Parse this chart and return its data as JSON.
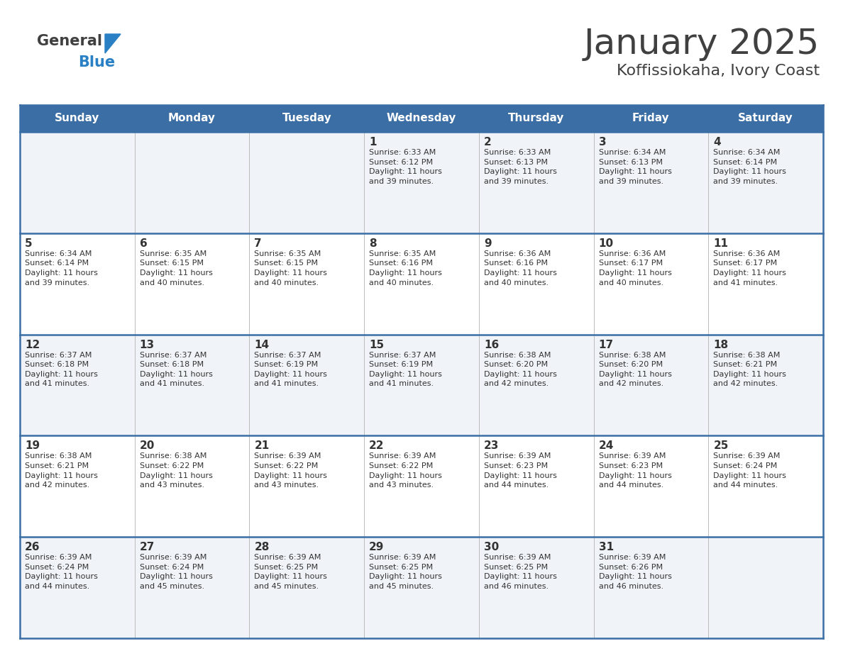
{
  "title": "January 2025",
  "subtitle": "Koffissiokaha, Ivory Coast",
  "header_bg": "#3A6EA5",
  "header_text_color": "#FFFFFF",
  "cell_bg_light": "#F0F4F8",
  "cell_bg_white": "#FFFFFF",
  "text_color": "#333333",
  "days_of_week": [
    "Sunday",
    "Monday",
    "Tuesday",
    "Wednesday",
    "Thursday",
    "Friday",
    "Saturday"
  ],
  "weeks": [
    [
      {
        "day": "",
        "info": ""
      },
      {
        "day": "",
        "info": ""
      },
      {
        "day": "",
        "info": ""
      },
      {
        "day": "1",
        "info": "Sunrise: 6:33 AM\nSunset: 6:12 PM\nDaylight: 11 hours\nand 39 minutes."
      },
      {
        "day": "2",
        "info": "Sunrise: 6:33 AM\nSunset: 6:13 PM\nDaylight: 11 hours\nand 39 minutes."
      },
      {
        "day": "3",
        "info": "Sunrise: 6:34 AM\nSunset: 6:13 PM\nDaylight: 11 hours\nand 39 minutes."
      },
      {
        "day": "4",
        "info": "Sunrise: 6:34 AM\nSunset: 6:14 PM\nDaylight: 11 hours\nand 39 minutes."
      }
    ],
    [
      {
        "day": "5",
        "info": "Sunrise: 6:34 AM\nSunset: 6:14 PM\nDaylight: 11 hours\nand 39 minutes."
      },
      {
        "day": "6",
        "info": "Sunrise: 6:35 AM\nSunset: 6:15 PM\nDaylight: 11 hours\nand 40 minutes."
      },
      {
        "day": "7",
        "info": "Sunrise: 6:35 AM\nSunset: 6:15 PM\nDaylight: 11 hours\nand 40 minutes."
      },
      {
        "day": "8",
        "info": "Sunrise: 6:35 AM\nSunset: 6:16 PM\nDaylight: 11 hours\nand 40 minutes."
      },
      {
        "day": "9",
        "info": "Sunrise: 6:36 AM\nSunset: 6:16 PM\nDaylight: 11 hours\nand 40 minutes."
      },
      {
        "day": "10",
        "info": "Sunrise: 6:36 AM\nSunset: 6:17 PM\nDaylight: 11 hours\nand 40 minutes."
      },
      {
        "day": "11",
        "info": "Sunrise: 6:36 AM\nSunset: 6:17 PM\nDaylight: 11 hours\nand 41 minutes."
      }
    ],
    [
      {
        "day": "12",
        "info": "Sunrise: 6:37 AM\nSunset: 6:18 PM\nDaylight: 11 hours\nand 41 minutes."
      },
      {
        "day": "13",
        "info": "Sunrise: 6:37 AM\nSunset: 6:18 PM\nDaylight: 11 hours\nand 41 minutes."
      },
      {
        "day": "14",
        "info": "Sunrise: 6:37 AM\nSunset: 6:19 PM\nDaylight: 11 hours\nand 41 minutes."
      },
      {
        "day": "15",
        "info": "Sunrise: 6:37 AM\nSunset: 6:19 PM\nDaylight: 11 hours\nand 41 minutes."
      },
      {
        "day": "16",
        "info": "Sunrise: 6:38 AM\nSunset: 6:20 PM\nDaylight: 11 hours\nand 42 minutes."
      },
      {
        "day": "17",
        "info": "Sunrise: 6:38 AM\nSunset: 6:20 PM\nDaylight: 11 hours\nand 42 minutes."
      },
      {
        "day": "18",
        "info": "Sunrise: 6:38 AM\nSunset: 6:21 PM\nDaylight: 11 hours\nand 42 minutes."
      }
    ],
    [
      {
        "day": "19",
        "info": "Sunrise: 6:38 AM\nSunset: 6:21 PM\nDaylight: 11 hours\nand 42 minutes."
      },
      {
        "day": "20",
        "info": "Sunrise: 6:38 AM\nSunset: 6:22 PM\nDaylight: 11 hours\nand 43 minutes."
      },
      {
        "day": "21",
        "info": "Sunrise: 6:39 AM\nSunset: 6:22 PM\nDaylight: 11 hours\nand 43 minutes."
      },
      {
        "day": "22",
        "info": "Sunrise: 6:39 AM\nSunset: 6:22 PM\nDaylight: 11 hours\nand 43 minutes."
      },
      {
        "day": "23",
        "info": "Sunrise: 6:39 AM\nSunset: 6:23 PM\nDaylight: 11 hours\nand 44 minutes."
      },
      {
        "day": "24",
        "info": "Sunrise: 6:39 AM\nSunset: 6:23 PM\nDaylight: 11 hours\nand 44 minutes."
      },
      {
        "day": "25",
        "info": "Sunrise: 6:39 AM\nSunset: 6:24 PM\nDaylight: 11 hours\nand 44 minutes."
      }
    ],
    [
      {
        "day": "26",
        "info": "Sunrise: 6:39 AM\nSunset: 6:24 PM\nDaylight: 11 hours\nand 44 minutes."
      },
      {
        "day": "27",
        "info": "Sunrise: 6:39 AM\nSunset: 6:24 PM\nDaylight: 11 hours\nand 45 minutes."
      },
      {
        "day": "28",
        "info": "Sunrise: 6:39 AM\nSunset: 6:25 PM\nDaylight: 11 hours\nand 45 minutes."
      },
      {
        "day": "29",
        "info": "Sunrise: 6:39 AM\nSunset: 6:25 PM\nDaylight: 11 hours\nand 45 minutes."
      },
      {
        "day": "30",
        "info": "Sunrise: 6:39 AM\nSunset: 6:25 PM\nDaylight: 11 hours\nand 46 minutes."
      },
      {
        "day": "31",
        "info": "Sunrise: 6:39 AM\nSunset: 6:26 PM\nDaylight: 11 hours\nand 46 minutes."
      },
      {
        "day": "",
        "info": ""
      }
    ]
  ],
  "logo_general_color": "#404040",
  "logo_blue_color": "#2980C4",
  "divider_color": "#3A6EA5",
  "n_weeks": 5,
  "n_cols": 7
}
